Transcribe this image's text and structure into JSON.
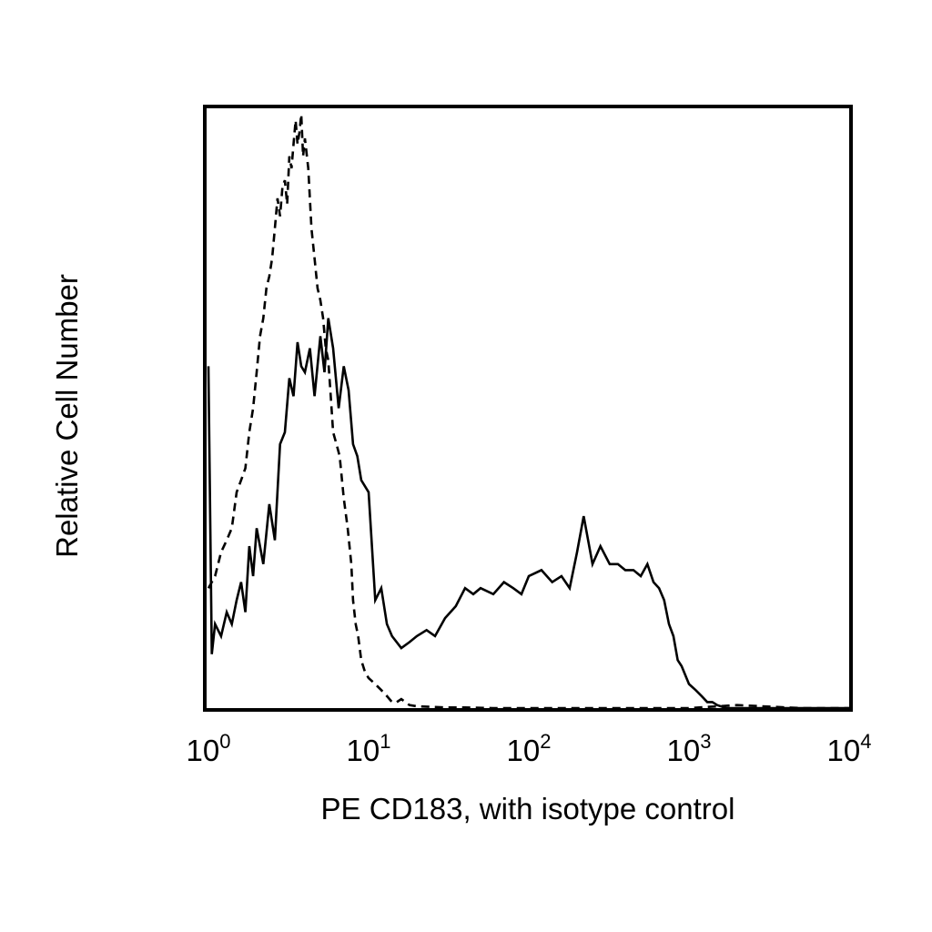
{
  "chart_data": {
    "type": "line",
    "xlabel": "PE CD183, with isotype control",
    "ylabel": "Relative Cell Number",
    "xscale": "log",
    "xlim": [
      1,
      10000
    ],
    "ylim": [
      0,
      100
    ],
    "x_ticks": [
      {
        "base": "10",
        "exp": "0",
        "value": 1
      },
      {
        "base": "10",
        "exp": "1",
        "value": 10
      },
      {
        "base": "10",
        "exp": "2",
        "value": 100
      },
      {
        "base": "10",
        "exp": "3",
        "value": 1000
      },
      {
        "base": "10",
        "exp": "4",
        "value": 10000
      }
    ],
    "grid": false,
    "legend": "none",
    "series": [
      {
        "style": "solid",
        "color": "#000000",
        "x": [
          1.0,
          1.05,
          1.1,
          1.2,
          1.3,
          1.4,
          1.5,
          1.6,
          1.7,
          1.8,
          1.9,
          2.0,
          2.2,
          2.4,
          2.6,
          2.8,
          3.0,
          3.2,
          3.4,
          3.6,
          3.8,
          4.0,
          4.3,
          4.6,
          5.0,
          5.3,
          5.6,
          6.0,
          6.5,
          7.0,
          7.5,
          8.0,
          8.5,
          9.0,
          10,
          11,
          12,
          13,
          14,
          16,
          18,
          20,
          23,
          26,
          30,
          35,
          40,
          45,
          50,
          60,
          70,
          80,
          90,
          100,
          120,
          140,
          160,
          180,
          200,
          220,
          250,
          280,
          320,
          360,
          400,
          450,
          500,
          550,
          600,
          650,
          700,
          750,
          800,
          850,
          900,
          1000,
          1100,
          1200,
          1300,
          1400,
          1500,
          1700,
          2000,
          3000,
          5000,
          10000
        ],
        "y": [
          57,
          9,
          14,
          12,
          16,
          14,
          18,
          21,
          16,
          27,
          22,
          30,
          24,
          34,
          28,
          44,
          46,
          55,
          52,
          61,
          57,
          56,
          60,
          52,
          62,
          56,
          65,
          60,
          50,
          57,
          53,
          44,
          42,
          38,
          36,
          18,
          20,
          14,
          12,
          10,
          11,
          12,
          13,
          12,
          15,
          17,
          20,
          19,
          20,
          19,
          21,
          20,
          19,
          22,
          23,
          21,
          22,
          20,
          26,
          32,
          24,
          27,
          24,
          24,
          23,
          23,
          22,
          24,
          21,
          20,
          18,
          14,
          12,
          8,
          7,
          4,
          3,
          2,
          1,
          1,
          0.5,
          0,
          0,
          0,
          0,
          0
        ]
      },
      {
        "style": "dashed",
        "color": "#000000",
        "x": [
          1.0,
          1.1,
          1.2,
          1.3,
          1.4,
          1.5,
          1.6,
          1.7,
          1.8,
          1.9,
          2.0,
          2.1,
          2.2,
          2.3,
          2.4,
          2.5,
          2.6,
          2.7,
          2.8,
          2.9,
          3.0,
          3.1,
          3.2,
          3.3,
          3.4,
          3.5,
          3.6,
          3.7,
          3.8,
          3.9,
          4.0,
          4.2,
          4.4,
          4.6,
          4.8,
          5.0,
          5.2,
          5.4,
          5.6,
          5.8,
          6.0,
          6.3,
          6.6,
          7.0,
          7.4,
          7.8,
          8.0,
          8.3,
          8.6,
          9.0,
          9.5,
          10,
          11,
          12,
          13,
          14,
          15,
          16,
          18,
          20,
          25,
          30,
          40,
          60,
          100,
          200,
          500,
          1000,
          2000,
          5000,
          10000
        ],
        "y": [
          20,
          22,
          26,
          28,
          30,
          36,
          38,
          40,
          46,
          50,
          56,
          62,
          65,
          70,
          72,
          75,
          80,
          85,
          82,
          87,
          88,
          84,
          92,
          90,
          94,
          98,
          94,
          96,
          99,
          92,
          95,
          90,
          80,
          75,
          70,
          68,
          65,
          60,
          58,
          52,
          46,
          44,
          42,
          35,
          30,
          24,
          18,
          14,
          12,
          8,
          6,
          5,
          4,
          3,
          2,
          1,
          1,
          1.5,
          0.5,
          0.3,
          0.2,
          0.1,
          0.1,
          0,
          0,
          0,
          0,
          0,
          0.5,
          0,
          0
        ]
      }
    ]
  }
}
